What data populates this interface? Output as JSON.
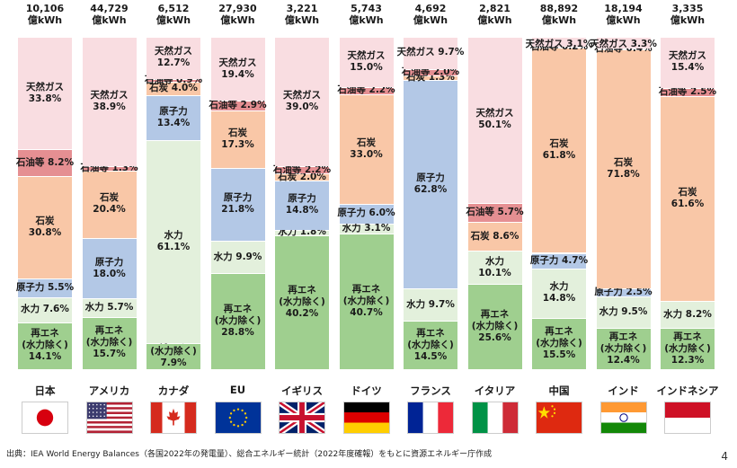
{
  "chart_data": {
    "type": "bar",
    "stacked": "percent",
    "unit": "億kWh",
    "categories": [
      {
        "country": "日本",
        "total": "10,106",
        "segments": [
          {
            "key": "renew",
            "label": "再エネ\n(水力除く)\n14.1%",
            "value": 14.1
          },
          {
            "key": "hydro",
            "label": "水力 7.6%",
            "value": 7.6
          },
          {
            "key": "nuclear",
            "label": "原子力 5.5%",
            "value": 5.5
          },
          {
            "key": "coal",
            "label": "石炭\n30.8%",
            "value": 30.8
          },
          {
            "key": "oil",
            "label": "石油等 8.2%",
            "value": 8.2
          },
          {
            "key": "gas",
            "label": "天然ガス\n33.8%",
            "value": 33.8
          }
        ]
      },
      {
        "country": "アメリカ",
        "total": "44,729",
        "segments": [
          {
            "key": "renew",
            "label": "再エネ\n(水力除く)\n15.7%",
            "value": 15.7
          },
          {
            "key": "hydro",
            "label": "水力 5.7%",
            "value": 5.7
          },
          {
            "key": "nuclear",
            "label": "原子力\n18.0%",
            "value": 18.0
          },
          {
            "key": "coal",
            "label": "石炭\n20.4%",
            "value": 20.4
          },
          {
            "key": "oil",
            "label": "石油等 1.3%",
            "value": 1.3
          },
          {
            "key": "gas",
            "label": "天然ガス\n38.9%",
            "value": 38.9
          }
        ]
      },
      {
        "country": "カナダ",
        "total": "6,512",
        "segments": [
          {
            "key": "renew",
            "label": "再エネ\n(水力除く)\n7.9%",
            "value": 7.9
          },
          {
            "key": "hydro",
            "label": "水力\n61.1%",
            "value": 61.1
          },
          {
            "key": "nuclear",
            "label": "原子力\n13.4%",
            "value": 13.4
          },
          {
            "key": "coal",
            "label": "石炭 4.0%",
            "value": 4.0
          },
          {
            "key": "oil",
            "label": "石油等 0.9%",
            "value": 0.9
          },
          {
            "key": "gas",
            "label": "天然ガス\n12.7%",
            "value": 12.7
          }
        ]
      },
      {
        "country": "EU",
        "total": "27,930",
        "segments": [
          {
            "key": "renew",
            "label": "再エネ\n(水力除く)\n28.8%",
            "value": 28.8
          },
          {
            "key": "hydro",
            "label": "水力 9.9%",
            "value": 9.9
          },
          {
            "key": "nuclear",
            "label": "原子力\n21.8%",
            "value": 21.8
          },
          {
            "key": "coal",
            "label": "石炭\n17.3%",
            "value": 17.3
          },
          {
            "key": "oil",
            "label": "石油等 2.9%",
            "value": 2.9
          },
          {
            "key": "gas",
            "label": "天然ガス\n19.4%",
            "value": 19.4
          }
        ]
      },
      {
        "country": "イギリス",
        "total": "3,221",
        "segments": [
          {
            "key": "renew",
            "label": "再エネ\n(水力除く)\n40.2%",
            "value": 40.2
          },
          {
            "key": "hydro",
            "label": "水力 1.8%",
            "value": 1.8
          },
          {
            "key": "nuclear",
            "label": "原子力\n14.8%",
            "value": 14.8
          },
          {
            "key": "coal",
            "label": "石炭 2.0%",
            "value": 2.0
          },
          {
            "key": "oil",
            "label": "石油等 2.2%",
            "value": 2.2
          },
          {
            "key": "gas",
            "label": "天然ガス\n39.0%",
            "value": 39.0
          }
        ]
      },
      {
        "country": "ドイツ",
        "total": "5,743",
        "segments": [
          {
            "key": "renew",
            "label": "再エネ\n(水力除く)\n40.7%",
            "value": 40.7
          },
          {
            "key": "hydro",
            "label": "水力 3.1%",
            "value": 3.1
          },
          {
            "key": "nuclear",
            "label": "原子力 6.0%",
            "value": 6.0
          },
          {
            "key": "coal",
            "label": "石炭\n33.0%",
            "value": 33.0
          },
          {
            "key": "oil",
            "label": "石油等 2.2%",
            "value": 2.2
          },
          {
            "key": "gas",
            "label": "天然ガス\n15.0%",
            "value": 15.0
          }
        ]
      },
      {
        "country": "フランス",
        "total": "4,692",
        "segments": [
          {
            "key": "renew",
            "label": "再エネ\n(水力除く)\n14.5%",
            "value": 14.5
          },
          {
            "key": "hydro",
            "label": "水力 9.7%",
            "value": 9.7
          },
          {
            "key": "nuclear",
            "label": "原子力\n62.8%",
            "value": 62.8
          },
          {
            "key": "coal",
            "label": "石炭 1.3%",
            "value": 1.3
          },
          {
            "key": "oil",
            "label": "石油等 2.0%",
            "value": 2.0
          },
          {
            "key": "gas",
            "label": "天然ガス 9.7%",
            "value": 9.7
          }
        ]
      },
      {
        "country": "イタリア",
        "total": "2,821",
        "segments": [
          {
            "key": "renew",
            "label": "再エネ\n(水力除く)\n25.6%",
            "value": 25.6
          },
          {
            "key": "hydro",
            "label": "水力\n10.1%",
            "value": 10.1
          },
          {
            "key": "coal",
            "label": "石炭 8.6%",
            "value": 8.6
          },
          {
            "key": "oil",
            "label": "石油等 5.7%",
            "value": 5.7
          },
          {
            "key": "gas",
            "label": "天然ガス\n50.1%",
            "value": 50.1
          }
        ]
      },
      {
        "country": "中国",
        "total": "88,892",
        "segments": [
          {
            "key": "renew",
            "label": "再エネ\n(水力除く)\n15.5%",
            "value": 15.5
          },
          {
            "key": "hydro",
            "label": "水力\n14.8%",
            "value": 14.8
          },
          {
            "key": "nuclear",
            "label": "原子力 4.7%",
            "value": 4.7
          },
          {
            "key": "coal",
            "label": "石炭\n61.8%",
            "value": 61.8
          },
          {
            "key": "oil",
            "label": "石油等 0.2%",
            "value": 0.2
          },
          {
            "key": "gas",
            "label": "天然ガス 3.1%",
            "value": 3.1
          }
        ]
      },
      {
        "country": "インド",
        "total": "18,194",
        "segments": [
          {
            "key": "renew",
            "label": "再エネ\n(水力除く)\n12.4%",
            "value": 12.4
          },
          {
            "key": "hydro",
            "label": "水力 9.5%",
            "value": 9.5
          },
          {
            "key": "nuclear",
            "label": "原子力 2.5%",
            "value": 2.5
          },
          {
            "key": "coal",
            "label": "石炭\n71.8%",
            "value": 71.8
          },
          {
            "key": "oil",
            "label": "石油等 0.4%",
            "value": 0.4
          },
          {
            "key": "gas",
            "label": "天然ガス 3.3%",
            "value": 3.3
          }
        ]
      },
      {
        "country": "インドネシア",
        "total": "3,335",
        "segments": [
          {
            "key": "renew",
            "label": "再エネ\n(水力除く)\n12.3%",
            "value": 12.3
          },
          {
            "key": "hydro",
            "label": "水力 8.2%",
            "value": 8.2
          },
          {
            "key": "coal",
            "label": "石炭\n61.6%",
            "value": 61.6
          },
          {
            "key": "oil",
            "label": "石油等 2.5%",
            "value": 2.5
          },
          {
            "key": "gas",
            "label": "天然ガス\n15.4%",
            "value": 15.4
          }
        ]
      }
    ],
    "colors": {
      "renew": "#9fcf8f",
      "hydro": "#e3f0dc",
      "nuclear": "#b3c8e6",
      "coal": "#f9c7a7",
      "oil": "#e58f92",
      "gas": "#f9dde1"
    },
    "flags": [
      "japan",
      "usa",
      "canada",
      "eu",
      "uk",
      "germany",
      "france",
      "italy",
      "china",
      "india",
      "indonesia"
    ]
  },
  "footer": {
    "source": "出典：IEA World Energy Balances（各国2022年の発電量）、総合エネルギー統計（2022年度確報）をもとに資源エネルギー庁作成",
    "page": "4"
  }
}
